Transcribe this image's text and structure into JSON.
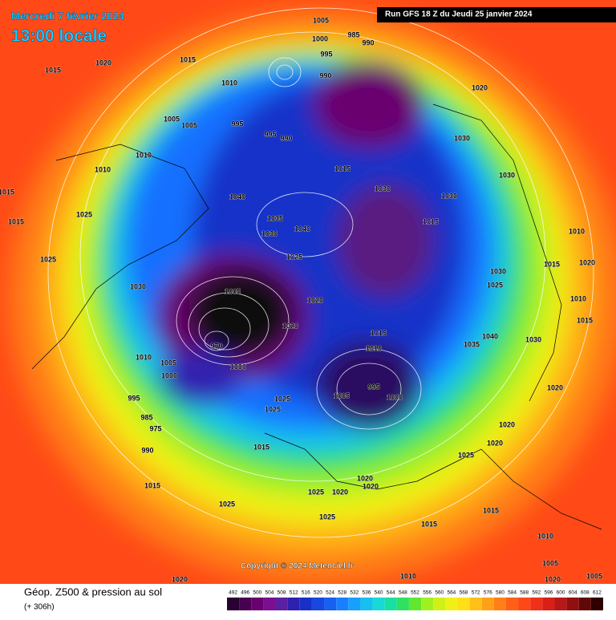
{
  "header": {
    "date": "Mercredi 7 février 2024",
    "time": "13:00 locale",
    "run": "Run GFS 18 Z du Jeudi 25 janvier 2024"
  },
  "copyright": "Copyright © 2024 Meteociel.fr",
  "legend": {
    "title": "Géop. Z500 & pression au sol",
    "subtitle": "(+ 306h)",
    "values": [
      492,
      496,
      500,
      504,
      508,
      512,
      516,
      520,
      524,
      528,
      532,
      536,
      540,
      544,
      548,
      552,
      556,
      560,
      564,
      568,
      572,
      576,
      580,
      584,
      588,
      592,
      596,
      600,
      604,
      608,
      612
    ],
    "colors": [
      "#2a0030",
      "#4a0050",
      "#6a0070",
      "#7a1090",
      "#5a20a0",
      "#3020b0",
      "#1830c8",
      "#1848e0",
      "#1860f0",
      "#1880ff",
      "#18a0ff",
      "#18c0f0",
      "#18d8d8",
      "#18e0a0",
      "#30e060",
      "#60e830",
      "#a0f020",
      "#d0f018",
      "#f0f018",
      "#ffe018",
      "#ffc018",
      "#ffa018",
      "#ff8018",
      "#ff6018",
      "#ff4818",
      "#f03018",
      "#d82018",
      "#b81818",
      "#901010",
      "#600808",
      "#300000"
    ]
  },
  "isobar_labels": [
    1005,
    1000,
    985,
    990,
    995,
    1015,
    1020,
    1015,
    1010,
    990,
    1005,
    1005,
    995,
    995,
    990,
    1020,
    1010,
    1010,
    1015,
    1030,
    1030,
    1030,
    1030,
    1015,
    1015,
    1025,
    1040,
    1035,
    1040,
    1030,
    1025,
    1015,
    1010,
    1015,
    1020,
    1025,
    1030,
    1030,
    1025,
    1005,
    1020,
    1020,
    1015,
    1010,
    1035,
    1040,
    1030,
    1010,
    1005,
    1000,
    1000,
    970,
    995,
    1025,
    1025,
    1005,
    995,
    1000,
    1020,
    985,
    975,
    990,
    1015,
    1020,
    1020,
    1025,
    1015,
    1020,
    1020,
    1025,
    1020,
    1025,
    1025,
    1015,
    1015,
    1010,
    1005,
    1020,
    1020,
    1010,
    1005,
    1010,
    1015
  ]
}
